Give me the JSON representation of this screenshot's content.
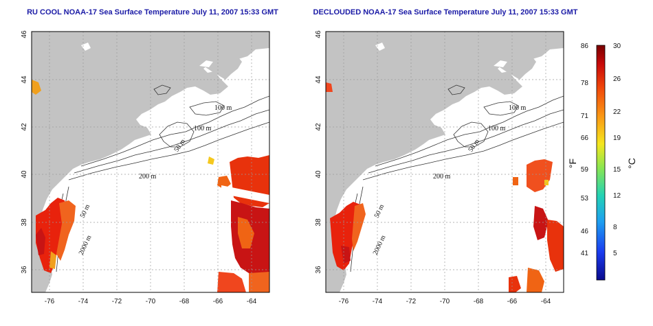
{
  "maps": [
    {
      "title": "RU COOL NOAA-17 Sea Surface Temperature July 11, 2007 15:33 GMT",
      "lon_ticks": [
        "-76",
        "-74",
        "-72",
        "-70",
        "-68",
        "-66",
        "-64"
      ],
      "lat_ticks": [
        "36",
        "38",
        "40",
        "42",
        "44",
        "46"
      ],
      "contour_labels": [
        "100 m",
        "100 m",
        "50 m",
        "200 m",
        "50 m",
        "2000 m"
      ]
    },
    {
      "title": "DECLOUDED NOAA-17 Sea Surface Temperature July 11, 2007 15:33 GMT",
      "lon_ticks": [
        "-76",
        "-74",
        "-72",
        "-70",
        "-68",
        "-66",
        "-64"
      ],
      "lat_ticks": [
        "36",
        "38",
        "40",
        "42",
        "44",
        "46"
      ],
      "contour_labels": [
        "100 m",
        "100 m",
        "50 m",
        "200 m",
        "50 m",
        "2000 m"
      ]
    }
  ],
  "colorbar": {
    "f_label": "°F",
    "c_label": "°C",
    "f_ticks": [
      "86",
      "78",
      "71",
      "66",
      "59",
      "53",
      "46",
      "41"
    ],
    "c_ticks": [
      "30",
      "26",
      "22",
      "19",
      "15",
      "12",
      "8",
      "5"
    ],
    "colors": [
      "#0a0a8c",
      "#1a3cf0",
      "#1ea0f0",
      "#23d2b4",
      "#8ce650",
      "#f5e61e",
      "#fa9614",
      "#f0460a",
      "#c80a0a",
      "#780000"
    ]
  },
  "colors": {
    "land": "#c3c3c3",
    "title": "#1a1aa6"
  }
}
